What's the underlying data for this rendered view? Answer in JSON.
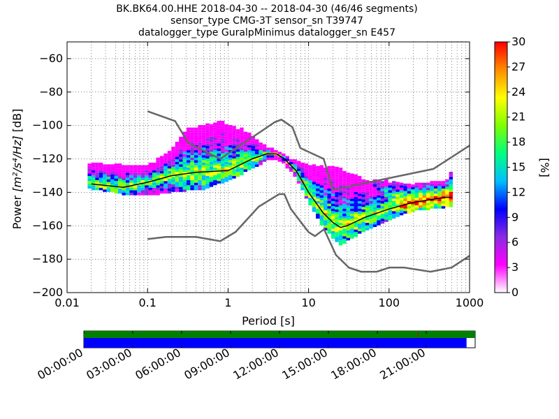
{
  "chart_data": [
    {
      "type": "heatmap",
      "title_lines": [
        "BK.BK64.00.HHE   2018-04-30 -- 2018-04-30  (46/46 segments)",
        "sensor_type CMG-3T sensor_sn T39747",
        "datalogger_type GuralpMinimus datalogger_sn E457"
      ],
      "xlabel": "Period [s]",
      "ylabel_prefix": "Power ",
      "ylabel_units": "[m²/s⁴/Hz]",
      "ylabel_suffix": " [dB]",
      "x_scale": "log",
      "xlim": [
        0.01,
        1000
      ],
      "ylim": [
        -200,
        -50
      ],
      "x_ticks": [
        0.01,
        0.1,
        1,
        10,
        100,
        1000
      ],
      "x_tick_labels": [
        "0.01",
        "0.1",
        "1",
        "10",
        "100",
        "1000"
      ],
      "y_ticks": [
        -200,
        -180,
        -160,
        -140,
        -120,
        -100,
        -80,
        -60
      ],
      "y_tick_labels": [
        "−200",
        "−180",
        "−160",
        "−140",
        "−120",
        "−100",
        "−80",
        "−60"
      ],
      "grid": true,
      "colorbar": {
        "label": "[%]",
        "range": [
          0,
          30
        ],
        "ticks": [
          0,
          3,
          6,
          9,
          12,
          15,
          18,
          21,
          24,
          27,
          30
        ],
        "tick_labels": [
          "0",
          "3",
          "6",
          "9",
          "12",
          "15",
          "18",
          "21",
          "24",
          "27",
          "30"
        ],
        "colormap": [
          "#ffffff",
          "#ff00ff",
          "#8a2be2",
          "#0000ff",
          "#00bfff",
          "#00ff7f",
          "#7fff00",
          "#ffff00",
          "#ff8c00",
          "#ff0000"
        ]
      },
      "series": [
        {
          "name": "",
          "role": "high noise model",
          "color": "#666666",
          "x": [
            0.1,
            0.22,
            0.32,
            0.8,
            3.8,
            4.6,
            6.3,
            7.9,
            15.4,
            20,
            354.8,
            1000
          ],
          "y": [
            -91.5,
            -97.4,
            -110.5,
            -120,
            -98,
            -96.5,
            -101,
            -113.5,
            -120,
            -138.5,
            -126,
            -112
          ]
        },
        {
          "name": "",
          "role": "low noise model",
          "color": "#666666",
          "x": [
            0.1,
            0.17,
            0.4,
            0.8,
            1.24,
            2.4,
            4.3,
            5.0,
            6.0,
            10,
            12,
            15.6,
            21.9,
            31.6,
            45,
            70,
            101,
            154,
            328,
            600,
            1000
          ],
          "y": [
            -168,
            -166.7,
            -166.7,
            -169.2,
            -163.7,
            -148.6,
            -141.1,
            -141.1,
            -149.8,
            -163.8,
            -166.2,
            -162.1,
            -177.5,
            -185,
            -187.5,
            -187.5,
            -185,
            -185,
            -187.5,
            -185,
            -178
          ]
        },
        {
          "name": "",
          "role": "mode",
          "color": "#000000",
          "x": [
            0.02,
            0.05,
            0.1,
            0.2,
            0.4,
            1,
            2,
            3,
            4,
            5,
            7,
            10,
            15,
            20,
            25,
            30,
            50,
            100,
            200,
            500,
            600
          ],
          "y": [
            -135,
            -137,
            -134,
            -130,
            -128,
            -127,
            -120,
            -117,
            -117,
            -120,
            -127,
            -140,
            -152,
            -158,
            -161,
            -160,
            -155,
            -150,
            -146,
            -143,
            -143
          ]
        },
        {
          "name": "",
          "role": "upper envelope",
          "color": "#ff00ff",
          "x": [
            0.02,
            0.05,
            0.1,
            0.2,
            0.3,
            0.5,
            0.8,
            1,
            1.5,
            2,
            3,
            4,
            5,
            7,
            10,
            15,
            20,
            30,
            50,
            100,
            200,
            500,
            600
          ],
          "y": [
            -123,
            -124,
            -125,
            -115,
            -103,
            -100,
            -98,
            -100,
            -103,
            -107,
            -113,
            -116,
            -118,
            -122,
            -124,
            -125,
            -125,
            -128,
            -133,
            -134,
            -136,
            -134,
            -128
          ]
        },
        {
          "name": "",
          "role": "lower envelope",
          "color": "#00bfff",
          "x": [
            0.02,
            0.05,
            0.1,
            0.2,
            0.5,
            1,
            2,
            3,
            4,
            5,
            7,
            10,
            15,
            20,
            25,
            30,
            50,
            100,
            200,
            500,
            600
          ],
          "y": [
            -137,
            -140,
            -141,
            -139,
            -137,
            -132,
            -125,
            -120,
            -119,
            -122,
            -130,
            -145,
            -160,
            -166,
            -171,
            -168,
            -162,
            -156,
            -150,
            -148,
            -148
          ]
        }
      ]
    },
    {
      "type": "timeline",
      "x_tick_labels": [
        "00:00:00",
        "03:00:00",
        "06:00:00",
        "09:00:00",
        "12:00:00",
        "15:00:00",
        "18:00:00",
        "21:00:00"
      ],
      "green_bar_fraction": 1.0,
      "blue_bar_fraction": 0.978,
      "colors": {
        "green": "#008000",
        "blue": "#0000ff"
      }
    }
  ]
}
